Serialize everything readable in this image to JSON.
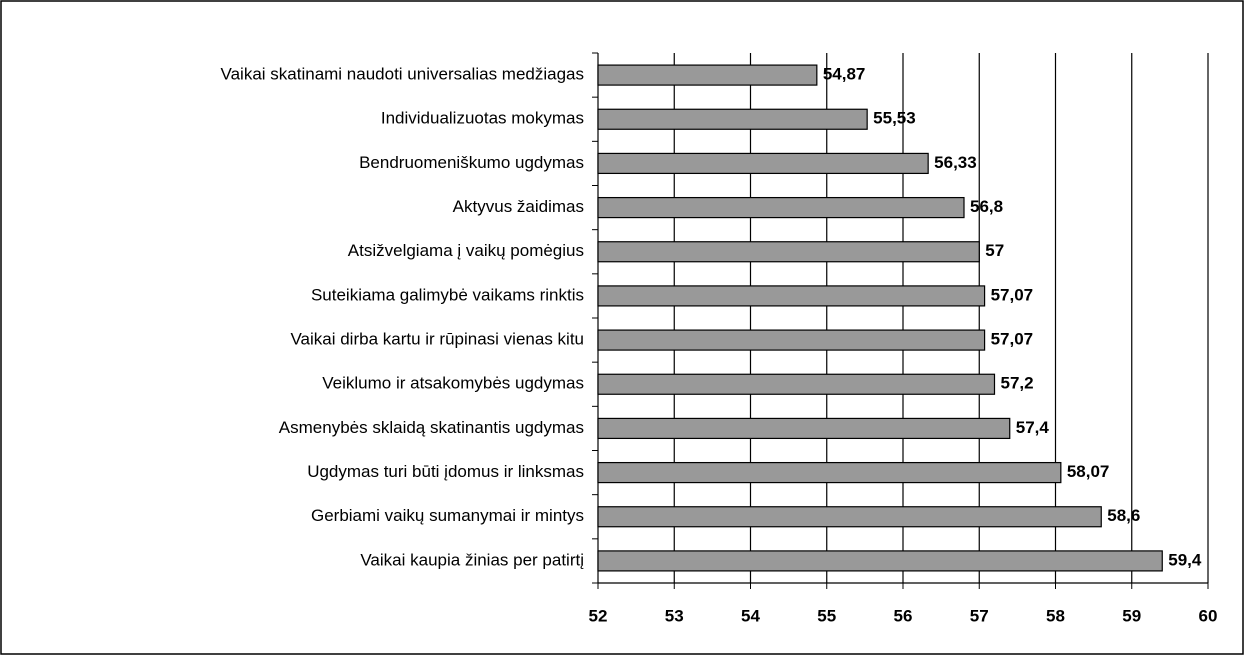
{
  "chart_data": {
    "type": "bar",
    "orientation": "horizontal",
    "categories": [
      "Vaikai skatinami naudoti universalias medžiagas",
      "Individualizuotas mokymas",
      "Bendruomeniškumo ugdymas",
      "Aktyvus žaidimas",
      "Atsižvelgiama į vaikų pomėgius",
      "Suteikiama galimybė vaikams rinktis",
      "Vaikai dirba kartu ir rūpinasi vienas kitu",
      "Veiklumo ir atsakomybės ugdymas",
      "Asmenybės sklaidą skatinantis ugdymas",
      "Ugdymas turi būti įdomus ir linksmas",
      "Gerbiami vaikų sumanymai ir mintys",
      "Vaikai kaupia žinias per patirtį"
    ],
    "values": [
      54.87,
      55.53,
      56.33,
      56.8,
      57,
      57.07,
      57.07,
      57.2,
      57.4,
      58.07,
      58.6,
      59.4
    ],
    "value_labels": [
      "54,87",
      "55,53",
      "56,33",
      "56,8",
      "57",
      "57,07",
      "57,07",
      "57,2",
      "57,4",
      "58,07",
      "58,6",
      "59,4"
    ],
    "color": "#999999",
    "xlim": [
      52,
      60
    ],
    "xticks": [
      52,
      53,
      54,
      55,
      56,
      57,
      58,
      59,
      60
    ],
    "grid": true
  }
}
